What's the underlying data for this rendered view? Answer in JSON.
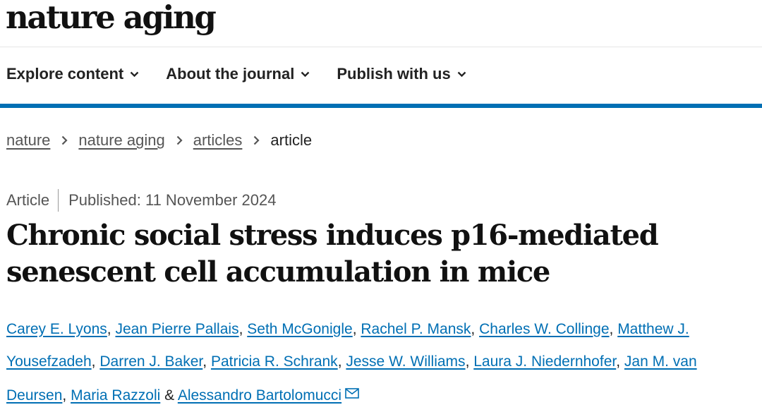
{
  "header": {
    "logo": "nature aging"
  },
  "nav": {
    "items": [
      {
        "label": "Explore content",
        "icon": "chevron-down-icon"
      },
      {
        "label": "About the journal",
        "icon": "chevron-down-icon"
      },
      {
        "label": "Publish with us",
        "icon": "chevron-down-icon"
      }
    ]
  },
  "breadcrumb": {
    "items": [
      "nature",
      "nature aging",
      "articles"
    ],
    "current": "article",
    "separator_icon": "chevron-right-icon"
  },
  "article": {
    "type": "Article",
    "published": "Published: 11 November 2024",
    "title": "Chronic social stress induces p16-mediated senescent cell accumulation in mice",
    "authors": [
      "Carey E. Lyons",
      "Jean Pierre Pallais",
      "Seth McGonigle",
      "Rachel P. Mansk",
      "Charles W. Collinge",
      "Matthew J. Yousefzadeh",
      "Darren J. Baker",
      "Patricia R. Schrank",
      "Jesse W. Williams",
      "Laura J. Niedernhofer",
      "Jan M. van Deursen",
      "Maria Razzoli",
      "Alessandro Bartolomucci"
    ],
    "author_separator": ",",
    "last_author_conjunction": "&",
    "corresponding_icon": "mail-icon"
  },
  "colors": {
    "link_blue": "#006fb4",
    "accent_bar": "#006fb4",
    "text": "#222222",
    "muted": "#555555"
  }
}
